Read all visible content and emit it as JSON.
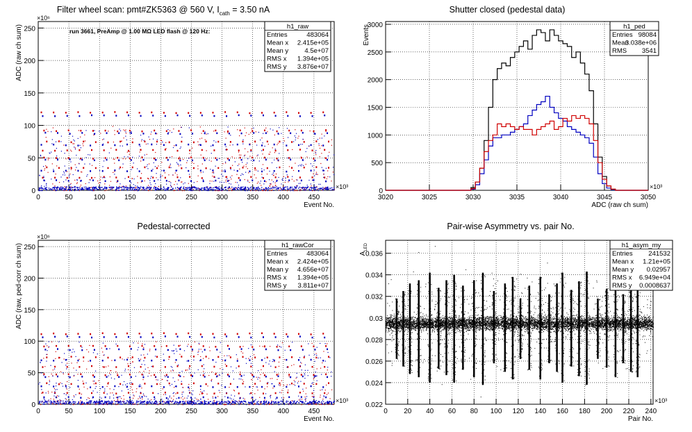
{
  "chart_data": [
    {
      "type": "scatter",
      "title": "Filter wheel scan: pmt#ZK5363 @   560 V, I",
      "title_sub": "cath",
      "title_tail": " = 3.50 nA",
      "annotation": "run 3661, PreAmp @ 1.00 MΩ LED flash @  120 Hz:",
      "xlabel": "Event No.",
      "ylabel": "ADC (raw ch sum)",
      "x_exponent": "×10³",
      "y_exponent": "×10⁶",
      "xlim": [
        0,
        483
      ],
      "ylim": [
        0,
        260
      ],
      "x_ticks": [
        0,
        50,
        100,
        150,
        200,
        250,
        300,
        350,
        400,
        450
      ],
      "y_ticks": [
        0,
        50,
        100,
        150,
        200,
        250
      ],
      "grid": true,
      "stats": {
        "name": "h1_raw",
        "rows": [
          {
            "label": "Entries",
            "value": "483064"
          },
          {
            "label": "Mean x",
            "value": "2.415e+05"
          },
          {
            "label": "Mean y",
            "value": "4.5e+07"
          },
          {
            "label": "RMS x",
            "value": "1.394e+05"
          },
          {
            "label": "RMS y",
            "value": "3.876e+07"
          }
        ]
      },
      "bands": [
        {
          "y": 120,
          "color": "#d00000"
        },
        {
          "y": 115,
          "color": "#0000c0"
        },
        {
          "y": 92,
          "color": "#d00000"
        },
        {
          "y": 88,
          "color": "#0000c0"
        },
        {
          "y": 75,
          "color": "#d00000"
        },
        {
          "y": 70,
          "color": "#0000c0"
        },
        {
          "y": 62,
          "color": "#d00000"
        },
        {
          "y": 50,
          "color": "#d00000"
        },
        {
          "y": 47,
          "color": "#0000c0"
        },
        {
          "y": 35,
          "color": "#d00000"
        },
        {
          "y": 30,
          "color": "#0000c0"
        },
        {
          "y": 20,
          "color": "#d00000"
        },
        {
          "y": 15,
          "color": "#0000c0"
        },
        {
          "y": 4,
          "color": "#0000c0"
        }
      ]
    },
    {
      "type": "line",
      "title": "Shutter closed (pedestal data)",
      "xlabel": "ADC (raw ch sum)",
      "ylabel": "Events",
      "x_exponent": "×10³",
      "xlim": [
        3020,
        3050
      ],
      "ylim": [
        0,
        3050
      ],
      "x_ticks": [
        3020,
        3025,
        3030,
        3035,
        3040,
        3045,
        3050
      ],
      "y_ticks": [
        0,
        500,
        1000,
        1500,
        2000,
        2500,
        3000
      ],
      "grid": true,
      "stats": {
        "name": "h1_ped",
        "rows": [
          {
            "label": "Entries",
            "value": "98084"
          },
          {
            "label": "Mean",
            "value": "3.038e+06"
          },
          {
            "label": "RMS",
            "value": "3541"
          }
        ]
      },
      "x": [
        3029.5,
        3030,
        3030.5,
        3031,
        3031.5,
        3032,
        3032.5,
        3033,
        3033.5,
        3034,
        3034.5,
        3035,
        3035.5,
        3036,
        3036.5,
        3037,
        3037.5,
        3038,
        3038.5,
        3039,
        3039.5,
        3040,
        3040.5,
        3041,
        3041.5,
        3042,
        3042.5,
        3043,
        3043.5,
        3044,
        3044.5,
        3045,
        3045.5,
        3046,
        3046.5
      ],
      "series": [
        {
          "color": "#000000",
          "values": [
            0,
            50,
            150,
            400,
            900,
            1500,
            2000,
            2200,
            2300,
            2250,
            2400,
            2500,
            2600,
            2700,
            2550,
            2800,
            2900,
            2850,
            2700,
            2900,
            2800,
            2700,
            2650,
            2600,
            2400,
            2500,
            2300,
            2100,
            1800,
            1200,
            600,
            250,
            80,
            20,
            0
          ]
        },
        {
          "color": "#0000c0",
          "values": [
            0,
            20,
            100,
            300,
            550,
            800,
            950,
            950,
            1000,
            1000,
            1050,
            1100,
            1150,
            1200,
            1350,
            1450,
            1550,
            1600,
            1700,
            1500,
            1400,
            1300,
            1250,
            1150,
            1100,
            1050,
            1000,
            950,
            850,
            600,
            300,
            120,
            40,
            10,
            0
          ]
        },
        {
          "color": "#d00000",
          "values": [
            0,
            30,
            150,
            400,
            700,
            900,
            1000,
            1200,
            1150,
            1200,
            1150,
            1100,
            1150,
            1100,
            1100,
            1000,
            1100,
            1150,
            1200,
            1250,
            1100,
            1150,
            1300,
            1250,
            1350,
            1300,
            1350,
            1300,
            1200,
            900,
            500,
            200,
            80,
            20,
            0
          ]
        }
      ]
    },
    {
      "type": "scatter",
      "title": "Pedestal-corrected",
      "xlabel": "Event No.",
      "ylabel": "ADC (raw, ped-corr ch sum)",
      "x_exponent": "×10³",
      "y_exponent": "×10⁶",
      "xlim": [
        0,
        483
      ],
      "ylim": [
        0,
        260
      ],
      "x_ticks": [
        0,
        50,
        100,
        150,
        200,
        250,
        300,
        350,
        400,
        450
      ],
      "y_ticks": [
        0,
        50,
        100,
        150,
        200,
        250
      ],
      "grid": true,
      "stats": {
        "name": "h1_rawCor",
        "rows": [
          {
            "label": "Entries",
            "value": "483064"
          },
          {
            "label": "Mean x",
            "value": "2.424e+05"
          },
          {
            "label": "Mean y",
            "value": "4.656e+07"
          },
          {
            "label": "RMS x",
            "value": "1.394e+05"
          },
          {
            "label": "RMS y",
            "value": "3.811e+07"
          }
        ]
      },
      "bands": [
        {
          "y": 112,
          "color": "#d00000"
        },
        {
          "y": 107,
          "color": "#0000c0"
        },
        {
          "y": 92,
          "color": "#d00000"
        },
        {
          "y": 87,
          "color": "#0000c0"
        },
        {
          "y": 75,
          "color": "#d00000"
        },
        {
          "y": 70,
          "color": "#0000c0"
        },
        {
          "y": 60,
          "color": "#d00000"
        },
        {
          "y": 47,
          "color": "#d00000"
        },
        {
          "y": 44,
          "color": "#0000c0"
        },
        {
          "y": 33,
          "color": "#d00000"
        },
        {
          "y": 28,
          "color": "#0000c0"
        },
        {
          "y": 18,
          "color": "#d00000"
        },
        {
          "y": 11,
          "color": "#0000c0"
        },
        {
          "y": 4,
          "color": "#0000c0"
        }
      ]
    },
    {
      "type": "scatter",
      "title": "Pair-wise Asymmetry vs. pair No.",
      "xlabel": "Pair No.",
      "ylabel": "A",
      "ylabel_sub": "LED",
      "x_exponent": "×10³",
      "xlim": [
        0,
        242
      ],
      "ylim": [
        0.022,
        0.0372
      ],
      "x_ticks": [
        0,
        20,
        40,
        60,
        80,
        100,
        120,
        140,
        160,
        180,
        200,
        220,
        240
      ],
      "y_ticks": [
        0.022,
        0.024,
        0.026,
        0.028,
        0.03,
        0.032,
        0.034,
        0.036
      ],
      "y_tick_labels": [
        "0.022",
        "0.024",
        "0.026",
        "0.028",
        "0.03",
        "0.032",
        "0.034",
        "0.036"
      ],
      "grid": true,
      "stats": {
        "name": "h1_asym_my",
        "rows": [
          {
            "label": "Entries",
            "value": "241532"
          },
          {
            "label": "Mean x",
            "value": "1.21e+05"
          },
          {
            "label": "Mean y",
            "value": "0.02957"
          },
          {
            "label": "RMS x",
            "value": "6.949e+04"
          },
          {
            "label": "RMS y",
            "value": "0.0008637"
          }
        ]
      },
      "center": 0.0295,
      "spikes": [
        {
          "x": 10,
          "low": 0.0262,
          "high": 0.0318
        },
        {
          "x": 16,
          "low": 0.0255,
          "high": 0.0325
        },
        {
          "x": 22,
          "low": 0.0248,
          "high": 0.0332
        },
        {
          "x": 30,
          "low": 0.0245,
          "high": 0.0335
        },
        {
          "x": 40,
          "low": 0.024,
          "high": 0.0342
        },
        {
          "x": 48,
          "low": 0.0253,
          "high": 0.0328
        },
        {
          "x": 55,
          "low": 0.0247,
          "high": 0.0335
        },
        {
          "x": 62,
          "low": 0.024,
          "high": 0.034
        },
        {
          "x": 70,
          "low": 0.0252,
          "high": 0.033
        },
        {
          "x": 80,
          "low": 0.0245,
          "high": 0.0335
        },
        {
          "x": 88,
          "low": 0.0238,
          "high": 0.0342
        },
        {
          "x": 98,
          "low": 0.0258,
          "high": 0.0325
        },
        {
          "x": 108,
          "low": 0.025,
          "high": 0.0332
        },
        {
          "x": 115,
          "low": 0.0243,
          "high": 0.0338
        },
        {
          "x": 122,
          "low": 0.0262,
          "high": 0.0318
        },
        {
          "x": 130,
          "low": 0.0252,
          "high": 0.033
        },
        {
          "x": 140,
          "low": 0.0243,
          "high": 0.0338
        },
        {
          "x": 148,
          "low": 0.0258,
          "high": 0.0322
        },
        {
          "x": 155,
          "low": 0.025,
          "high": 0.0332
        },
        {
          "x": 160,
          "low": 0.024,
          "high": 0.0342
        },
        {
          "x": 168,
          "low": 0.0255,
          "high": 0.0326
        },
        {
          "x": 175,
          "low": 0.0246,
          "high": 0.0334
        },
        {
          "x": 182,
          "low": 0.0238,
          "high": 0.0343
        },
        {
          "x": 192,
          "low": 0.0262,
          "high": 0.0318
        },
        {
          "x": 200,
          "low": 0.0254,
          "high": 0.0327
        },
        {
          "x": 208,
          "low": 0.0245,
          "high": 0.0334
        },
        {
          "x": 215,
          "low": 0.0258,
          "high": 0.0322
        },
        {
          "x": 222,
          "low": 0.025,
          "high": 0.033
        },
        {
          "x": 228,
          "low": 0.0245,
          "high": 0.0338
        }
      ]
    }
  ]
}
